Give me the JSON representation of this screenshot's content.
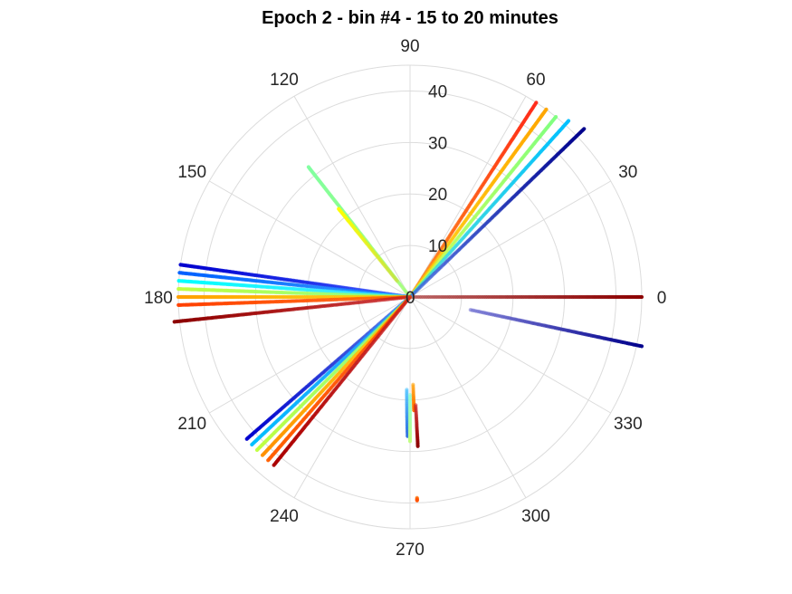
{
  "chart_data": {
    "type": "polar-scatter",
    "title": "Epoch 2 - bin #4 - 15 to 20 minutes",
    "angle_ticks": [
      "0",
      "30",
      "60",
      "90",
      "120",
      "150",
      "180",
      "210",
      "240",
      "270",
      "300",
      "330"
    ],
    "radial_ticks": [
      "0",
      "10",
      "20",
      "30",
      "40"
    ],
    "rlim": [
      0,
      45
    ],
    "grid": true,
    "colormap": "jet (color varies along each track)",
    "tracks": [
      {
        "theta": [
          0,
          0
        ],
        "r": [
          0,
          45
        ],
        "color_from": "#b04848",
        "color_to": "#8b0000"
      },
      {
        "theta": [
          -12,
          -12
        ],
        "r": [
          12,
          46
        ],
        "color_from": "#6a6ad0",
        "color_to": "#00008b"
      },
      {
        "theta": [
          57,
          57
        ],
        "r": [
          0,
          45
        ],
        "color_from": "#ff7f00",
        "color_to": "#ff2a1a"
      },
      {
        "theta": [
          54,
          54
        ],
        "r": [
          0,
          45
        ],
        "color_from": "#ffd000",
        "color_to": "#ffa500"
      },
      {
        "theta": [
          51,
          51
        ],
        "r": [
          0,
          45
        ],
        "color_from": "#c8ff40",
        "color_to": "#80ff80"
      },
      {
        "theta": [
          48,
          48
        ],
        "r": [
          0,
          46
        ],
        "color_from": "#40e0d0",
        "color_to": "#00bfff"
      },
      {
        "theta": [
          44,
          44
        ],
        "r": [
          0,
          47
        ],
        "color_from": "#4169e1",
        "color_to": "#00008b"
      },
      {
        "theta": [
          128,
          128
        ],
        "r": [
          0,
          32
        ],
        "color_from": "#9aff66",
        "color_to": "#80ffa0"
      },
      {
        "theta": [
          129,
          129
        ],
        "r": [
          4,
          22
        ],
        "color_from": "#c8e040",
        "color_to": "#ffff00"
      },
      {
        "theta": [
          172,
          172
        ],
        "r": [
          0,
          45
        ],
        "color_from": "#2040ff",
        "color_to": "#0000cd"
      },
      {
        "theta": [
          174,
          174
        ],
        "r": [
          0,
          45
        ],
        "color_from": "#1e90ff",
        "color_to": "#0060ff"
      },
      {
        "theta": [
          176,
          176
        ],
        "r": [
          0,
          45
        ],
        "color_from": "#40e0ff",
        "color_to": "#00ffff"
      },
      {
        "theta": [
          178,
          178
        ],
        "r": [
          0,
          45
        ],
        "color_from": "#80ff80",
        "color_to": "#c0ff40"
      },
      {
        "theta": [
          180,
          180
        ],
        "r": [
          0,
          45
        ],
        "color_from": "#ffd000",
        "color_to": "#ffa000"
      },
      {
        "theta": [
          182,
          182
        ],
        "r": [
          0,
          45
        ],
        "color_from": "#ff6000",
        "color_to": "#ff4000"
      },
      {
        "theta": [
          186,
          186
        ],
        "r": [
          0,
          46
        ],
        "color_from": "#cc2020",
        "color_to": "#8b0000"
      },
      {
        "theta": [
          221,
          221
        ],
        "r": [
          0,
          42
        ],
        "color_from": "#4169e1",
        "color_to": "#0000cd"
      },
      {
        "theta": [
          223,
          223
        ],
        "r": [
          0,
          42
        ],
        "color_from": "#1e90ff",
        "color_to": "#00bfff"
      },
      {
        "theta": [
          225,
          225
        ],
        "r": [
          0,
          42
        ],
        "color_from": "#80ff80",
        "color_to": "#c0ff40"
      },
      {
        "theta": [
          227,
          227
        ],
        "r": [
          0,
          42
        ],
        "color_from": "#ffd000",
        "color_to": "#ff9000"
      },
      {
        "theta": [
          229,
          229
        ],
        "r": [
          0,
          42
        ],
        "color_from": "#ff4000",
        "color_to": "#ff6000"
      },
      {
        "theta": [
          231,
          231
        ],
        "r": [
          0,
          42
        ],
        "color_from": "#cc2020",
        "color_to": "#aa0000"
      },
      {
        "theta": [
          268,
          269
        ],
        "r": [
          18,
          27
        ],
        "color_from": "#40c0ff",
        "color_to": "#3070e0"
      },
      {
        "theta": [
          270,
          270
        ],
        "r": [
          19,
          28
        ],
        "color_from": "#80ffd0",
        "color_to": "#c0ff80"
      },
      {
        "theta": [
          272,
          272
        ],
        "r": [
          17,
          22
        ],
        "color_from": "#ffa000",
        "color_to": "#ff7000"
      },
      {
        "theta": [
          273,
          273
        ],
        "r": [
          21,
          29
        ],
        "color_from": "#cc2020",
        "color_to": "#8b0000"
      },
      {
        "theta": [
          272,
          272
        ],
        "r": [
          39,
          39.5
        ],
        "color_from": "#ff7000",
        "color_to": "#ff5000"
      }
    ]
  }
}
